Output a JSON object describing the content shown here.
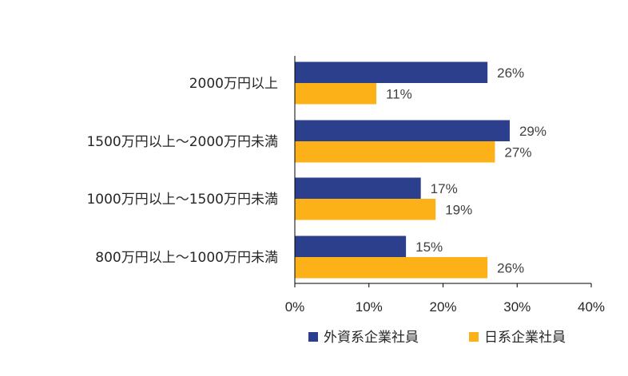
{
  "chart_data": {
    "type": "bar",
    "orientation": "horizontal",
    "categories": [
      "2000万円以上",
      "1500万円以上～2000万円未満",
      "1000万円以上～1500万円未満",
      "800万円以上～1000万円未満"
    ],
    "series": [
      {
        "name": "外資系企業社員",
        "values": [
          26,
          29,
          17,
          15
        ],
        "labels": [
          "26%",
          "29%",
          "17%",
          "15%"
        ],
        "color": "#2b3f8c"
      },
      {
        "name": "日系企業社員",
        "values": [
          11,
          27,
          19,
          26
        ],
        "labels": [
          "11%",
          "27%",
          "19%",
          "26%"
        ],
        "color": "#fbb117"
      }
    ],
    "xlim": [
      0,
      40
    ],
    "xticks": [
      0,
      10,
      20,
      30,
      40
    ],
    "xtick_labels": [
      "0%",
      "10%",
      "20%",
      "30%",
      "40%"
    ],
    "grid": false,
    "legend_position": "bottom"
  }
}
